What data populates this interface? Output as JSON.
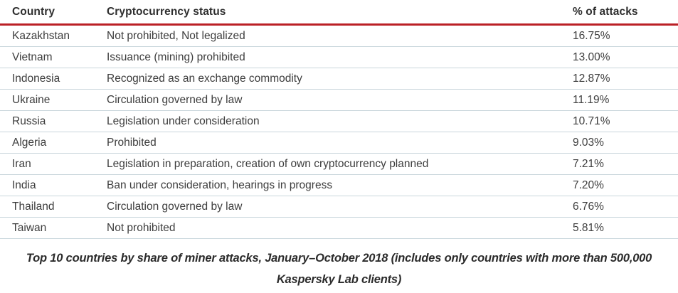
{
  "chart_data": {
    "type": "table",
    "columns": [
      "Country",
      "Cryptocurrency status",
      "% of attacks"
    ],
    "rows": [
      [
        "Kazakhstan",
        "Not prohibited, Not legalized",
        "16.75%"
      ],
      [
        "Vietnam",
        "Issuance (mining) prohibited",
        "13.00%"
      ],
      [
        "Indonesia",
        "Recognized as an exchange commodity",
        "12.87%"
      ],
      [
        "Ukraine",
        "Circulation governed by law",
        "11.19%"
      ],
      [
        "Russia",
        "Legislation under consideration",
        "10.71%"
      ],
      [
        "Algeria",
        "Prohibited",
        "9.03%"
      ],
      [
        "Iran",
        "Legislation in preparation, creation of own cryptocurrency planned",
        "7.21%"
      ],
      [
        "India",
        "Ban under consideration, hearings in progress",
        "7.20%"
      ],
      [
        "Thailand",
        "Circulation governed by law",
        "6.76%"
      ],
      [
        "Taiwan",
        "Not prohibited",
        "5.81%"
      ]
    ],
    "caption": "Top 10 countries by share of miner attacks, January–October 2018 (includes only countries with more than 500,000 Kaspersky Lab clients)",
    "caption_lines": [
      "Top 10 countries by share of miner attacks, January–October 2018 (includes only countries with more than 500,000",
      "Kaspersky Lab clients)"
    ],
    "layout": {
      "header_rule_color": "#bb2026",
      "row_divider_color": "#c9d6dc",
      "text_color": "#3d3d3d",
      "grid": "horizontal-only",
      "columns_alignment": [
        "left",
        "left",
        "left"
      ]
    }
  }
}
